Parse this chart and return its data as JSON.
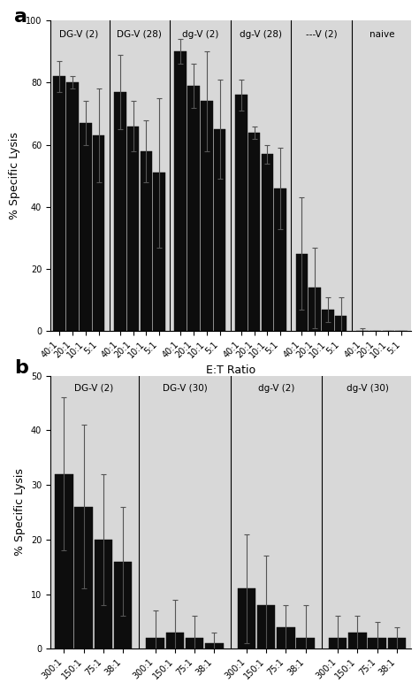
{
  "panel_a": {
    "ylabel": "% Specific Lysis",
    "xlabel": "E:T Ratio",
    "ylim": [
      0,
      100
    ],
    "yticks": [
      0,
      20,
      40,
      60,
      80,
      100
    ],
    "groups": [
      {
        "label": "DG-V (2)",
        "xticks": [
          "40:1",
          "20:1",
          "10:1",
          "5:1"
        ],
        "values": [
          82,
          80,
          67,
          63
        ],
        "errors": [
          5,
          2,
          7,
          15
        ]
      },
      {
        "label": "DG-V (28)",
        "xticks": [
          "40:1",
          "20:1",
          "10:1",
          "5:1"
        ],
        "values": [
          77,
          66,
          58,
          51
        ],
        "errors": [
          12,
          8,
          10,
          24
        ]
      },
      {
        "label": "dg-V (2)",
        "xticks": [
          "40:1",
          "20:1",
          "10:1",
          "5:1"
        ],
        "values": [
          90,
          79,
          74,
          65
        ],
        "errors": [
          4,
          7,
          16,
          16
        ]
      },
      {
        "label": "dg-V (28)",
        "xticks": [
          "40:1",
          "20:1",
          "10:1",
          "5:1"
        ],
        "values": [
          76,
          64,
          57,
          46
        ],
        "errors": [
          5,
          2,
          3,
          13
        ]
      },
      {
        "label": "---V (2)",
        "xticks": [
          "40:1",
          "20:1",
          "10:1",
          "5:1"
        ],
        "values": [
          25,
          14,
          7,
          5
        ],
        "errors": [
          18,
          13,
          4,
          6
        ]
      },
      {
        "label": "naive",
        "xticks": [
          "40:1",
          "20:1",
          "10:1",
          "5:1"
        ],
        "values": [
          0,
          0,
          0,
          0
        ],
        "errors": [
          1,
          0,
          0,
          0
        ]
      }
    ]
  },
  "panel_b": {
    "ylabel": "% Specific Lysis",
    "xlabel": "E:T Ratio",
    "ylim": [
      0,
      50
    ],
    "yticks": [
      0,
      10,
      20,
      30,
      40,
      50
    ],
    "groups": [
      {
        "label": "DG-V (2)",
        "xticks": [
          "300:1",
          "150:1",
          "75:1",
          "38:1"
        ],
        "values": [
          32,
          26,
          20,
          16
        ],
        "errors": [
          14,
          15,
          12,
          10
        ]
      },
      {
        "label": "DG-V (30)",
        "xticks": [
          "300:1",
          "150:1",
          "75:1",
          "38:1"
        ],
        "values": [
          2,
          3,
          2,
          1
        ],
        "errors": [
          5,
          6,
          4,
          2
        ]
      },
      {
        "label": "dg-V (2)",
        "xticks": [
          "300:1",
          "150:1",
          "75:1",
          "38:1"
        ],
        "values": [
          11,
          8,
          4,
          2
        ],
        "errors": [
          10,
          9,
          4,
          6
        ]
      },
      {
        "label": "dg-V (30)",
        "xticks": [
          "300:1",
          "150:1",
          "75:1",
          "38:1"
        ],
        "values": [
          2,
          3,
          2,
          2
        ],
        "errors": [
          4,
          3,
          3,
          2
        ]
      }
    ]
  },
  "bar_color": "#0d0d0d",
  "error_color": "#555555",
  "background_color": "#d8d8d8",
  "panel_label_fontsize": 16,
  "group_label_fontsize": 7.5,
  "axis_label_fontsize": 9,
  "tick_fontsize": 7
}
